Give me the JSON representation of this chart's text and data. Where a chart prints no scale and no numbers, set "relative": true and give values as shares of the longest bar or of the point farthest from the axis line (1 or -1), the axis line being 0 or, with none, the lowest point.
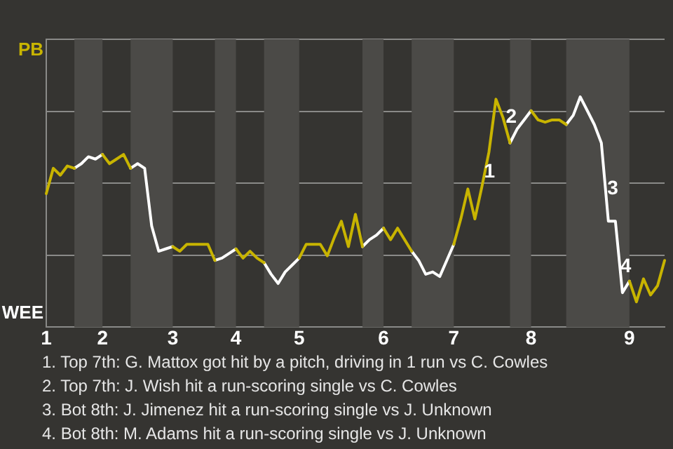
{
  "chart_data": {
    "type": "line",
    "relative": true,
    "categories": [
      "1",
      null,
      null,
      null,
      null,
      null,
      null,
      null,
      "2",
      null,
      null,
      null,
      null,
      null,
      null,
      null,
      null,
      null,
      "3",
      null,
      null,
      null,
      null,
      null,
      null,
      null,
      null,
      "4",
      null,
      null,
      null,
      null,
      null,
      null,
      null,
      null,
      "5",
      null,
      null,
      null,
      null,
      null,
      null,
      null,
      null,
      null,
      null,
      null,
      "6",
      null,
      null,
      null,
      null,
      null,
      null,
      null,
      null,
      null,
      "7",
      null,
      null,
      null,
      null,
      null,
      null,
      null,
      null,
      null,
      null,
      "8",
      null,
      null,
      null,
      null,
      null,
      null,
      null,
      null,
      null,
      null,
      null,
      null,
      null,
      "9",
      null,
      null,
      null,
      null,
      null
    ],
    "series": [
      {
        "color": "#c8b400",
        "values": [
          0.58,
          0.69,
          0.66,
          0.7,
          0.69,
          null,
          null,
          null,
          0.75,
          0.71,
          0.73,
          0.75,
          0.69,
          null,
          null,
          null,
          null,
          null,
          0.35,
          0.33,
          0.36,
          0.36,
          0.36,
          0.36,
          0.29,
          null,
          null,
          0.34,
          0.3,
          0.33,
          0.3,
          0.28,
          null,
          null,
          null,
          null,
          0.3,
          0.36,
          0.36,
          0.36,
          0.31,
          0.39,
          0.46,
          0.35,
          0.49,
          0.35,
          null,
          null,
          0.43,
          0.38,
          0.43,
          0.38,
          0.33,
          null,
          null,
          null,
          null,
          null,
          0.36,
          0.47,
          0.6,
          0.47,
          0.61,
          0.76,
          0.99,
          0.91,
          0.8,
          null,
          null,
          0.94,
          0.9,
          0.89,
          0.9,
          0.9,
          0.88,
          null,
          null,
          null,
          null,
          null,
          null,
          null,
          null,
          0.2,
          0.11,
          0.21,
          0.14,
          0.18,
          0.29
        ]
      },
      {
        "color": "#ffffff",
        "values": [
          null,
          null,
          null,
          null,
          0.69,
          0.71,
          0.74,
          0.73,
          0.75,
          null,
          null,
          null,
          0.69,
          0.71,
          0.69,
          0.44,
          0.33,
          0.34,
          0.35,
          null,
          null,
          null,
          null,
          null,
          0.29,
          0.3,
          0.32,
          0.34,
          null,
          null,
          null,
          0.28,
          0.23,
          0.19,
          0.24,
          0.27,
          0.3,
          null,
          null,
          null,
          null,
          null,
          null,
          null,
          null,
          0.35,
          0.38,
          0.4,
          0.43,
          null,
          null,
          null,
          0.33,
          0.29,
          0.23,
          0.24,
          0.22,
          0.29,
          0.36,
          null,
          null,
          null,
          null,
          null,
          null,
          null,
          0.8,
          0.86,
          0.9,
          0.94,
          null,
          null,
          null,
          null,
          0.88,
          0.92,
          1,
          0.94,
          0.88,
          0.8,
          0.46,
          0.46,
          0.15,
          0.2,
          null,
          null,
          null,
          null,
          null
        ]
      }
    ],
    "grid": "y",
    "legend": false,
    "marker": "none",
    "line_style": "solid",
    "annotations": [
      "PB",
      "WEE",
      "1",
      "2",
      "3",
      "4",
      "1. Top 7th: G. Mattox got hit by a pitch, driving in 1 run vs C. Cowles",
      "2. Top 7th: J. Wish hit a run-scoring single vs C. Cowles",
      "3. Bot 8th: J. Jimenez hit a run-scoring single vs J. Unknown",
      "4. Bot 8th: M. Adams hit a run-scoring single vs J. Unknown"
    ]
  }
}
